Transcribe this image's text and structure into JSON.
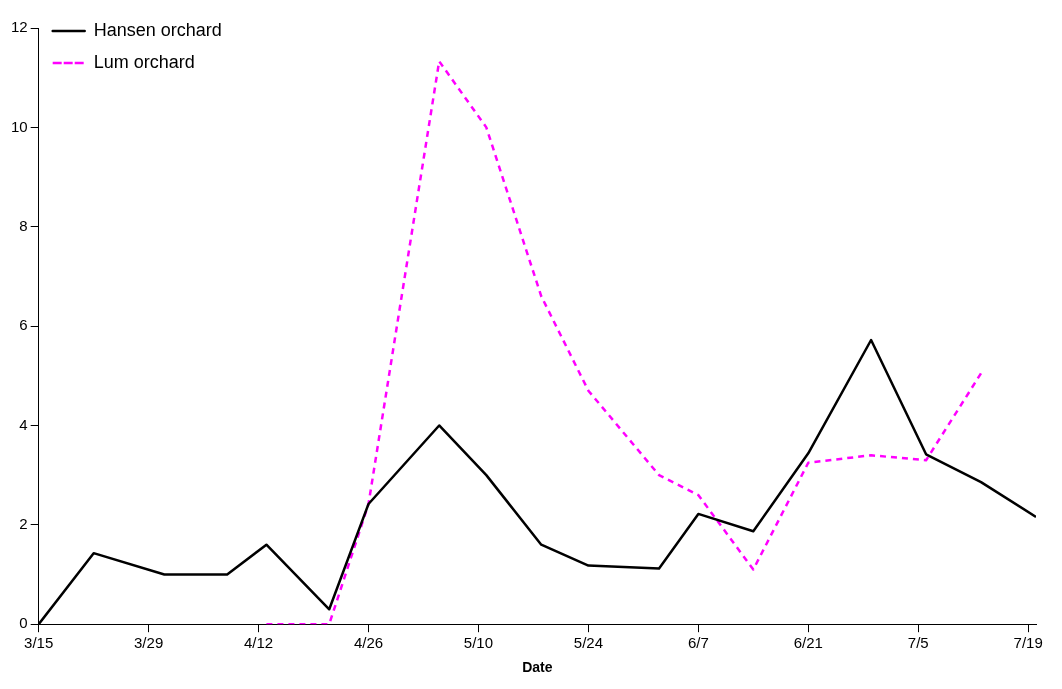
{
  "chart_data": {
    "type": "line",
    "xlabel": "Date",
    "xlim": [
      "--03-15",
      "--07-20"
    ],
    "xticks": [
      {
        "value": "--03-15",
        "label": "3/15"
      },
      {
        "value": "--03-29",
        "label": "3/29"
      },
      {
        "value": "--04-12",
        "label": "4/12"
      },
      {
        "value": "--04-26",
        "label": "4/26"
      },
      {
        "value": "--05-10",
        "label": "5/10"
      },
      {
        "value": "--05-24",
        "label": "5/24"
      },
      {
        "value": "--06-07",
        "label": "6/7"
      },
      {
        "value": "--06-21",
        "label": "6/21"
      },
      {
        "value": "--07-05",
        "label": "7/5"
      },
      {
        "value": "--07-19",
        "label": "7/19"
      }
    ],
    "ylim": [
      0,
      12
    ],
    "yticks": [
      0,
      2,
      4,
      6,
      8,
      10,
      12
    ],
    "grid": false,
    "legend": "top left",
    "marker": "none",
    "series": [
      {
        "name": "Hansen orchard",
        "color": "#000000",
        "line_style": "solid",
        "x": [
          "--03-15",
          "--03-22",
          "--03-31",
          "--04-08",
          "--04-13",
          "--04-21",
          "--04-26",
          "--05-05",
          "--05-11",
          "--05-18",
          "--05-24",
          "--06-02",
          "--06-07",
          "--06-14",
          "--06-21",
          "--06-29",
          "--07-06",
          "--07-13",
          "--07-20"
        ],
        "values": [
          0,
          1.43,
          1.0,
          1.0,
          1.6,
          0.3,
          2.42,
          4.0,
          3.0,
          1.6,
          1.18,
          1.12,
          2.22,
          1.87,
          3.44,
          5.72,
          3.42,
          2.86,
          2.16
        ]
      },
      {
        "name": "Lum orchard",
        "color": "#ff00ff",
        "line_style": "dashed",
        "x": [
          "--04-13",
          "--04-21",
          "--04-26",
          "--05-05",
          "--05-11",
          "--05-18",
          "--05-24",
          "--06-02",
          "--06-07",
          "--06-14",
          "--06-21",
          "--06-29",
          "--07-06",
          "--07-13"
        ],
        "values": [
          0,
          0,
          2.42,
          11.33,
          10.0,
          6.6,
          4.7,
          3.0,
          2.6,
          1.1,
          3.25,
          3.4,
          3.3,
          5.05
        ]
      }
    ]
  }
}
